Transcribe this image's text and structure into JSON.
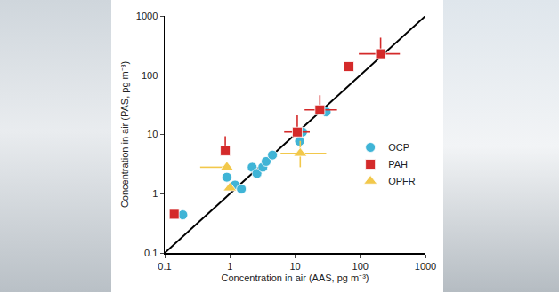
{
  "chart_data": {
    "type": "scatter",
    "x_label": "Concentration in air (AAS, pg m⁻³)",
    "y_label": "Concentration in air (PAS, pg m⁻³)",
    "log": true,
    "xlim": [
      0.1,
      1000
    ],
    "ylim": [
      0.1,
      1000
    ],
    "xticks": [
      0.1,
      1,
      10,
      100,
      1000
    ],
    "yticks": [
      0.1,
      1,
      10,
      100,
      1000
    ],
    "grid": false,
    "legend": "right",
    "series": [
      {
        "type": "line",
        "color": "#000000",
        "line_style": "solid",
        "x": [
          0.1,
          1000
        ],
        "y": [
          0.1,
          1000
        ]
      },
      {
        "name": "OCP",
        "color": "#3fb4d6",
        "marker": "circle",
        "x": [
          0.19,
          0.9,
          1.2,
          1.5,
          2.2,
          2.6,
          3.2,
          3.6,
          4.5,
          11.7,
          13,
          30
        ],
        "y": [
          0.44,
          1.9,
          1.4,
          1.2,
          2.8,
          2.2,
          2.8,
          3.5,
          4.5,
          7.7,
          11,
          24
        ]
      },
      {
        "name": "PAH",
        "color": "#d42a2a",
        "marker": "square",
        "x": [
          0.14,
          0.85,
          10.8,
          24,
          67,
          205
        ],
        "y": [
          0.45,
          5.3,
          11,
          26,
          140,
          230
        ],
        "error_x_minus": [
          0,
          0,
          4,
          10,
          0,
          110
        ],
        "error_x_plus": [
          0,
          0,
          6,
          20,
          0,
          200
        ],
        "error_y_minus": [
          0,
          0,
          0,
          0,
          0,
          0
        ],
        "error_y_plus": [
          0,
          4,
          10,
          20,
          0,
          200
        ]
      },
      {
        "name": "OPFR",
        "color": "#f2c84b",
        "marker": "triangle-up",
        "x": [
          0.9,
          1.0,
          12
        ],
        "y": [
          2.8,
          1.25,
          4.8
        ],
        "error_x_minus": [
          0.55,
          0,
          6
        ],
        "error_x_plus": [
          0,
          0,
          18
        ],
        "error_y_minus": [
          0,
          0,
          2
        ],
        "error_y_plus": [
          0,
          0,
          3
        ]
      }
    ]
  }
}
